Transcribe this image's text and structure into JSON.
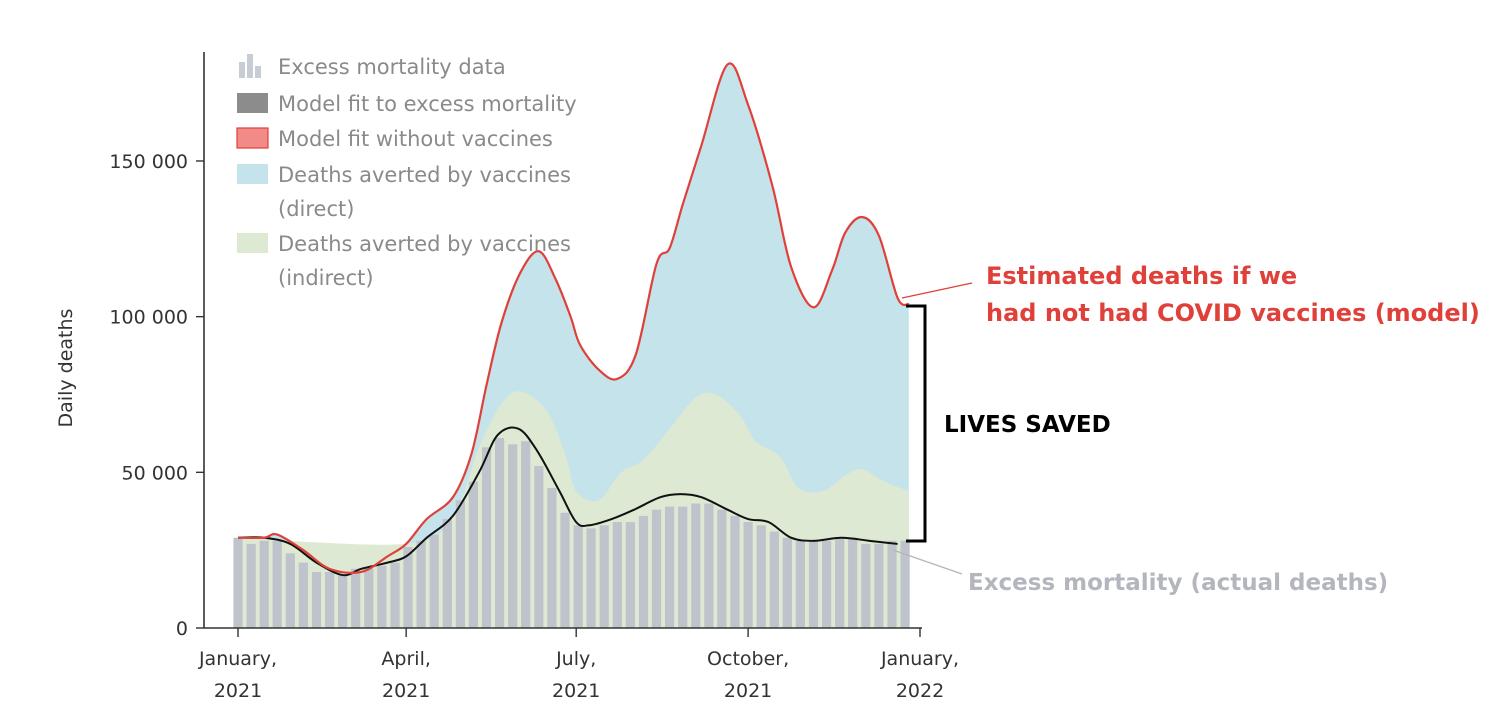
{
  "chart_data": {
    "type": "area",
    "xlabel": "",
    "ylabel": "Daily deaths",
    "ylim": [
      0,
      185000
    ],
    "yticks": [
      {
        "value": 0,
        "label": "0"
      },
      {
        "value": 50000,
        "label": "50 000"
      },
      {
        "value": 100000,
        "label": "100 000"
      },
      {
        "value": 150000,
        "label": "150 000"
      }
    ],
    "xlim": [
      "2021-01-01",
      "2022-01-01"
    ],
    "xticks": [
      {
        "date": "2021-01-01",
        "line1": "January,",
        "line2": "2021"
      },
      {
        "date": "2021-04-01",
        "line1": "April,",
        "line2": "2021"
      },
      {
        "date": "2021-07-01",
        "line1": "July,",
        "line2": "2021"
      },
      {
        "date": "2021-10-01",
        "line1": "October,",
        "line2": "2021"
      },
      {
        "date": "2022-01-01",
        "line1": "January,",
        "line2": "2022"
      }
    ],
    "legend": [
      {
        "key": "excess",
        "label": "Excess mortality data",
        "icon": "bar-chart-icon"
      },
      {
        "key": "fit",
        "label": "Model fit to excess mortality",
        "icon": "swatch"
      },
      {
        "key": "novax",
        "label": "Model fit without vaccines",
        "icon": "swatch"
      },
      {
        "key": "direct",
        "label": "Deaths averted by vaccines",
        "label2": "(direct)",
        "icon": "swatch"
      },
      {
        "key": "indirect",
        "label": "Deaths averted by vaccines",
        "label2": "(indirect)",
        "icon": "swatch"
      }
    ],
    "legend_position": "top-left",
    "grid": false,
    "colors": {
      "excess": "#bfc3cc",
      "fit": "#8c8c8c",
      "fit_line": "#111111",
      "novax": "#e0403a",
      "novax_swatch": "#f28b87",
      "direct": "#c4e3ea",
      "indirect": "#dde9d2"
    },
    "excess_bars": {
      "series": "Excess mortality data",
      "dates": [
        "2021-01-01",
        "2021-01-08",
        "2021-01-15",
        "2021-01-22",
        "2021-01-29",
        "2021-02-05",
        "2021-02-12",
        "2021-02-19",
        "2021-02-26",
        "2021-03-05",
        "2021-03-12",
        "2021-03-19",
        "2021-03-26",
        "2021-04-02",
        "2021-04-09",
        "2021-04-16",
        "2021-04-23",
        "2021-04-30",
        "2021-05-07",
        "2021-05-14",
        "2021-05-21",
        "2021-05-28",
        "2021-06-04",
        "2021-06-11",
        "2021-06-18",
        "2021-06-25",
        "2021-07-02",
        "2021-07-09",
        "2021-07-16",
        "2021-07-23",
        "2021-07-30",
        "2021-08-06",
        "2021-08-13",
        "2021-08-20",
        "2021-08-27",
        "2021-09-03",
        "2021-09-10",
        "2021-09-17",
        "2021-09-24",
        "2021-10-01",
        "2021-10-08",
        "2021-10-15",
        "2021-10-22",
        "2021-10-29",
        "2021-11-05",
        "2021-11-12",
        "2021-11-19",
        "2021-11-26",
        "2021-12-03",
        "2021-12-10",
        "2021-12-17",
        "2021-12-24"
      ],
      "values": [
        29000,
        27000,
        28000,
        28000,
        24000,
        21000,
        18000,
        18000,
        17000,
        19000,
        19000,
        20000,
        21000,
        26000,
        28000,
        30000,
        35000,
        41000,
        47000,
        58000,
        61000,
        59000,
        60000,
        52000,
        45000,
        37000,
        33000,
        32000,
        33000,
        34000,
        34000,
        36000,
        38000,
        39000,
        39000,
        40000,
        40000,
        38000,
        36000,
        34000,
        33000,
        31000,
        29000,
        28000,
        28000,
        28000,
        29000,
        29000,
        27000,
        27000,
        28000,
        28000
      ]
    },
    "model_fit": {
      "series": "Model fit to excess mortality",
      "dates": [
        "2021-01-01",
        "2021-01-15",
        "2021-01-29",
        "2021-02-12",
        "2021-02-26",
        "2021-03-08",
        "2021-03-22",
        "2021-04-01",
        "2021-04-12",
        "2021-04-26",
        "2021-05-10",
        "2021-05-20",
        "2021-05-31",
        "2021-06-10",
        "2021-06-22",
        "2021-07-01",
        "2021-07-08",
        "2021-07-20",
        "2021-08-01",
        "2021-08-15",
        "2021-08-26",
        "2021-09-06",
        "2021-09-20",
        "2021-10-01",
        "2021-10-12",
        "2021-10-24",
        "2021-11-05",
        "2021-11-20",
        "2021-12-05",
        "2021-12-20"
      ],
      "values": [
        29000,
        29000,
        27000,
        21000,
        17000,
        19000,
        21000,
        23000,
        29000,
        36000,
        50000,
        62000,
        64000,
        57000,
        44000,
        34000,
        33000,
        35000,
        38000,
        42000,
        43000,
        42000,
        38000,
        35000,
        34000,
        29000,
        28000,
        29000,
        28000,
        27000
      ]
    },
    "without_vaccines": {
      "series": "Model fit without vaccines",
      "dates": [
        "2021-01-01",
        "2021-01-15",
        "2021-01-22",
        "2021-02-05",
        "2021-02-19",
        "2021-03-08",
        "2021-03-22",
        "2021-04-01",
        "2021-04-12",
        "2021-04-26",
        "2021-05-06",
        "2021-05-14",
        "2021-05-22",
        "2021-06-01",
        "2021-06-11",
        "2021-06-20",
        "2021-06-28",
        "2021-07-03",
        "2021-07-13",
        "2021-07-23",
        "2021-08-02",
        "2021-08-13",
        "2021-08-20",
        "2021-08-27",
        "2021-09-06",
        "2021-09-20",
        "2021-10-01",
        "2021-10-14",
        "2021-10-24",
        "2021-11-05",
        "2021-11-15",
        "2021-11-22",
        "2021-12-01",
        "2021-12-10",
        "2021-12-20",
        "2021-12-26"
      ],
      "values": [
        29000,
        29000,
        30000,
        25000,
        19000,
        18000,
        23000,
        27000,
        35000,
        42000,
        56000,
        78000,
        98000,
        114000,
        121000,
        112000,
        100000,
        91000,
        83000,
        80000,
        88000,
        117000,
        122000,
        136000,
        155000,
        181000,
        168000,
        142000,
        116000,
        103000,
        115000,
        127000,
        132000,
        126000,
        106000,
        104000
      ]
    },
    "direct_averted_top": {
      "series": "Deaths averted by vaccines (direct)",
      "note_values_are_total_without_vaccines": true
    },
    "indirect_averted_top": {
      "series": "Deaths averted by vaccines (indirect)",
      "dates": [
        "2021-01-01",
        "2021-04-01",
        "2021-04-26",
        "2021-05-10",
        "2021-05-22",
        "2021-06-01",
        "2021-06-15",
        "2021-06-25",
        "2021-07-01",
        "2021-07-13",
        "2021-07-25",
        "2021-08-06",
        "2021-08-20",
        "2021-09-03",
        "2021-09-14",
        "2021-09-27",
        "2021-10-05",
        "2021-10-18",
        "2021-10-28",
        "2021-11-10",
        "2021-11-22",
        "2021-12-01",
        "2021-12-13",
        "2021-12-26"
      ],
      "values": [
        29000,
        27000,
        36000,
        58000,
        72000,
        76000,
        70000,
        56000,
        44000,
        41000,
        50000,
        54000,
        64000,
        74000,
        75000,
        68000,
        60000,
        55000,
        45000,
        44000,
        49000,
        51000,
        47000,
        44000
      ]
    },
    "last_date": "2021-12-26"
  },
  "annotations": {
    "estimated_line1": "Estimated deaths if we",
    "estimated_line2": "had not had COVID vaccines (model)",
    "lives_saved": "LIVES SAVED",
    "excess_actual": "Excess mortality (actual deaths)"
  }
}
